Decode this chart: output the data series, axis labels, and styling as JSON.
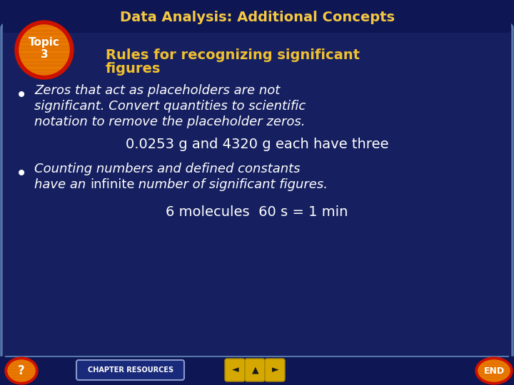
{
  "title": "Data Analysis: Additional Concepts",
  "topic_label": "Topic\n3",
  "subtitle_line1": "Rules for recognizing significant",
  "subtitle_line2": "figures",
  "bullet1_line1": "Zeros that act as placeholders are not",
  "bullet1_line2": "significant. Convert quantities to scientific",
  "bullet1_line3": "notation to remove the placeholder zeros.",
  "example1": "0.0253 g and 4320 g each have three",
  "bullet2_line1": "Counting numbers and defined constants",
  "bullet2_line2_italic": "have an ",
  "bullet2_line2_normal": "infinite",
  "bullet2_line2_italic2": " number of significant figures.",
  "example2": "6 molecules  60 s = 1 min",
  "chapter_resources": "CHAPTER RESOURCES",
  "bg_dark": "#0e1654",
  "bg_main": "#162060",
  "border_color": "#5577aa",
  "title_color": "#f5c842",
  "subtitle_color": "#f0c030",
  "body_color": "#ffffff",
  "topic_red": "#cc1100",
  "topic_orange": "#f08000",
  "topic_stripe": "#e07000",
  "bottom_bg": "#0e1654",
  "nav_gold": "#d4a800",
  "nav_bg": "#162060"
}
